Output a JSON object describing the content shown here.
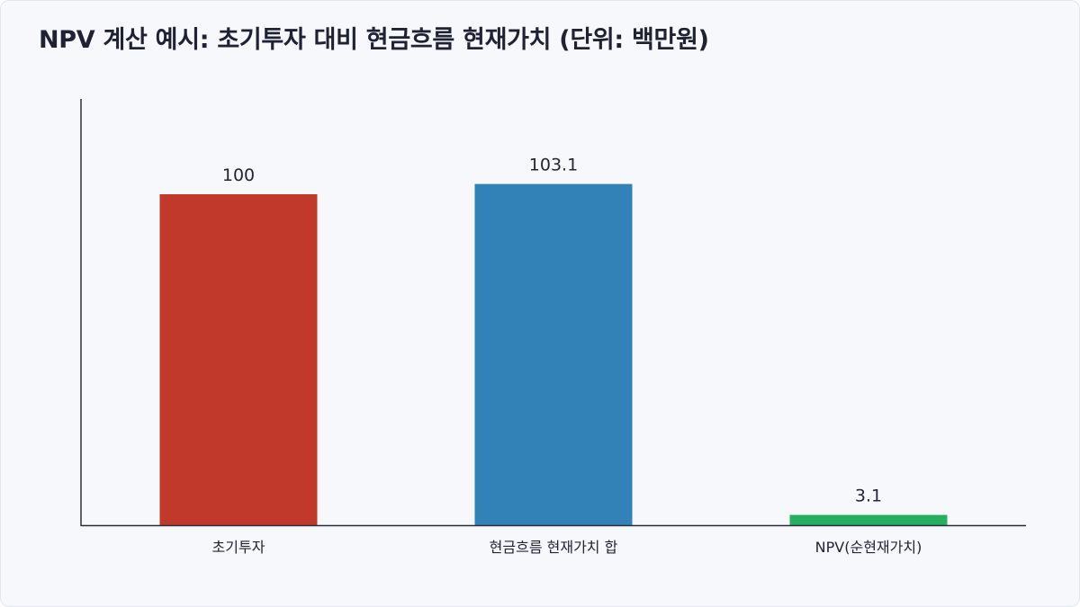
{
  "title": "NPV 계산 예시: 초기투자 대비 현금흐름 현재가치 (단위: 백만원)",
  "chart_data": {
    "type": "bar",
    "title": "NPV 계산 예시: 초기투자 대비 현금흐름 현재가치 (단위: 백만원)",
    "categories": [
      "초기투자",
      "현금흐름 현재가치 합",
      "NPV(순현재가치)"
    ],
    "values": [
      100,
      103.1,
      3.1
    ],
    "value_labels": [
      "100",
      "103.1",
      "3.1"
    ],
    "colors": [
      "#c0392b",
      "#3282b8",
      "#27ae60"
    ],
    "xlabel": "",
    "ylabel": "",
    "ylim": [
      0,
      110
    ],
    "grid": false,
    "legend": "none"
  }
}
